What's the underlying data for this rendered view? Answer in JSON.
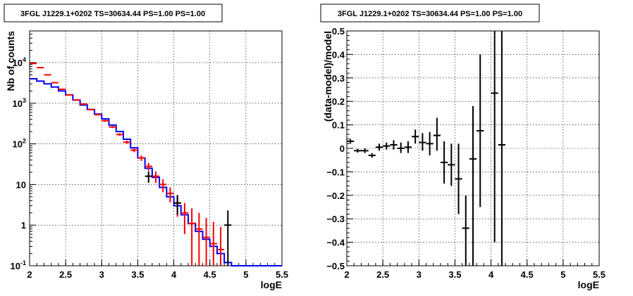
{
  "chart_data": [
    {
      "type": "line",
      "title": "3FGL J1229.1+0202 TS=30634.44 PS=1.00 PS=1.00",
      "xlabel": "logE",
      "ylabel": "Nb of counts",
      "xlim": [
        2,
        5.5
      ],
      "ylim": [
        0.1,
        60000
      ],
      "yscale": "log",
      "grid": true,
      "x_ticks": [
        "2",
        "2.5",
        "3",
        "3.5",
        "4",
        "4.5",
        "5",
        "5.5"
      ],
      "y_ticks": [
        "10^-1",
        "1",
        "10",
        "10^2",
        "10^3",
        "10^4"
      ],
      "bin_edges": [
        2.0,
        2.1,
        2.2,
        2.3,
        2.4,
        2.5,
        2.6,
        2.7,
        2.8,
        2.9,
        3.0,
        3.1,
        3.2,
        3.3,
        3.4,
        3.5,
        3.6,
        3.7,
        3.8,
        3.9,
        4.0,
        4.1,
        4.2,
        4.3,
        4.4,
        4.5,
        4.6,
        4.7,
        4.8,
        4.9,
        5.0,
        5.1,
        5.2,
        5.3,
        5.4,
        5.5
      ],
      "series": [
        {
          "color": "#0000ff",
          "style": "step",
          "values": [
            4000,
            3500,
            3000,
            2500,
            2000,
            1600,
            1200,
            900,
            700,
            540,
            410,
            290,
            200,
            130,
            80,
            45,
            25,
            15,
            8.5,
            5,
            3,
            1.8,
            1.1,
            0.7,
            0.45,
            0.3,
            0.2,
            0.12,
            0.1,
            0.1,
            0.1,
            0.1,
            0.1,
            0.1,
            0.1
          ]
        },
        {
          "color": "#ff0000",
          "style": "errorbar",
          "x": [
            2.05,
            2.15,
            2.25,
            2.35,
            2.45,
            2.55,
            2.65,
            2.75,
            2.85,
            2.95,
            3.05,
            3.15,
            3.25,
            3.35,
            3.45,
            3.55,
            3.65,
            3.75,
            3.85,
            3.95,
            4.05,
            4.15,
            4.25,
            4.35,
            4.45,
            4.55,
            4.65
          ],
          "y": [
            9500,
            7500,
            5000,
            3200,
            2200,
            1600,
            1200,
            950,
            700,
            520,
            370,
            260,
            170,
            110,
            70,
            45,
            28,
            16,
            10,
            6,
            3.5,
            2,
            1.1,
            0.8,
            0.5,
            0.35,
            0.25
          ],
          "ylow": [
            9300,
            7300,
            4850,
            3100,
            2130,
            1550,
            1160,
            910,
            670,
            500,
            350,
            245,
            158,
            100,
            62,
            38,
            22,
            11,
            6.5,
            3.6,
            1.6,
            0.6,
            0.1,
            0.1,
            0.1,
            0.1,
            0.1
          ],
          "yhigh": [
            9700,
            7700,
            5150,
            3300,
            2270,
            1650,
            1240,
            990,
            730,
            540,
            390,
            275,
            182,
            120,
            78,
            52,
            34,
            21,
            13.5,
            8.5,
            5.5,
            3.5,
            2.6,
            2.0,
            1.5,
            1.2,
            0.9
          ]
        },
        {
          "color": "#000000",
          "style": "errorbar",
          "x": [
            3.65,
            4.05,
            4.75
          ],
          "y": [
            16,
            3.5,
            1
          ],
          "ylow": [
            11,
            1.8,
            0.1
          ],
          "yhigh": [
            21,
            5.5,
            2.3
          ]
        }
      ]
    },
    {
      "type": "scatter",
      "title": "3FGL J1229.1+0202 TS=30634.44 PS=1.00 PS=1.00",
      "xlabel": "logE",
      "ylabel": "(data-model)/model",
      "xlim": [
        2,
        5.5
      ],
      "ylim": [
        -0.5,
        0.5
      ],
      "grid": true,
      "x_ticks": [
        "2",
        "2.5",
        "3",
        "3.5",
        "4",
        "4.5",
        "5",
        "5.5"
      ],
      "y_ticks": [
        "−0.5",
        "−0.4",
        "−0.3",
        "−0.2",
        "−0.1",
        "0",
        "0.1",
        "0.2",
        "0.3",
        "0.4",
        "0.5"
      ],
      "y_tick_values": [
        -0.5,
        -0.4,
        -0.3,
        -0.2,
        -0.1,
        0,
        0.1,
        0.2,
        0.3,
        0.4,
        0.5
      ],
      "series": [
        {
          "color": "#000000",
          "style": "errorbar",
          "x": [
            2.05,
            2.15,
            2.25,
            2.35,
            2.45,
            2.55,
            2.65,
            2.75,
            2.85,
            2.95,
            3.05,
            3.15,
            3.25,
            3.35,
            3.45,
            3.55,
            3.65,
            3.75,
            3.85,
            4.05,
            4.15
          ],
          "y": [
            0.03,
            -0.01,
            -0.01,
            -0.03,
            0.005,
            0.01,
            0.015,
            0.0,
            0.005,
            0.05,
            0.025,
            0.02,
            0.055,
            -0.06,
            -0.07,
            -0.13,
            -0.34,
            -0.045,
            0.075,
            0.235,
            0.015
          ],
          "ylow": [
            0.02,
            -0.018,
            -0.02,
            -0.04,
            -0.01,
            -0.005,
            -0.005,
            -0.02,
            -0.02,
            0.02,
            -0.01,
            -0.03,
            -0.01,
            -0.15,
            -0.16,
            -0.28,
            -0.5,
            -0.5,
            -0.25,
            -0.4,
            -0.5
          ],
          "yhigh": [
            0.04,
            -0.002,
            0.0,
            -0.02,
            0.02,
            0.025,
            0.035,
            0.025,
            0.03,
            0.08,
            0.065,
            0.07,
            0.13,
            0.03,
            0.02,
            0.02,
            -0.2,
            0.18,
            0.4,
            0.5,
            0.5
          ]
        }
      ]
    }
  ]
}
